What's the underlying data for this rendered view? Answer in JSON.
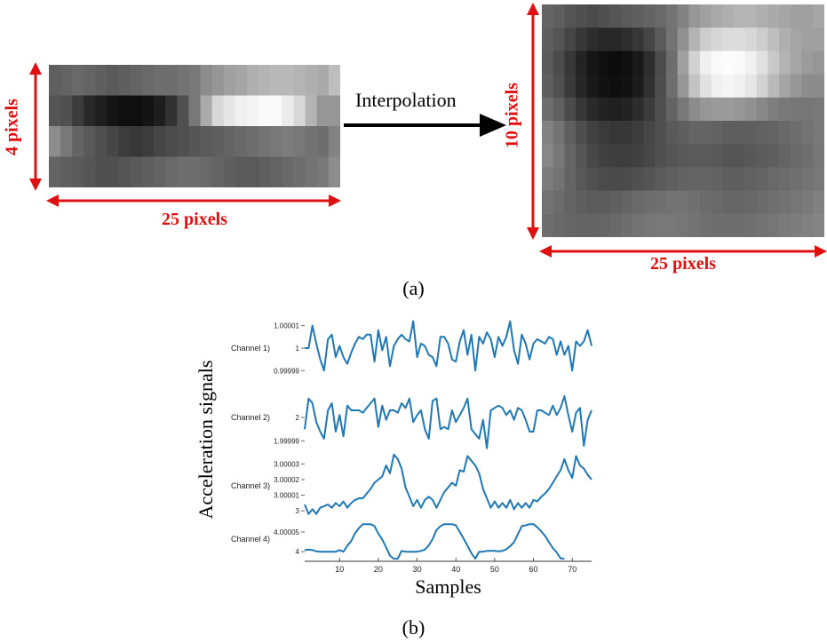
{
  "figure_a": {
    "left_height_label": "4 pixels",
    "left_width_label": "25 pixels",
    "arrow_label": "Interpolation",
    "right_height_label": "10 pixels",
    "right_width_label": "25 pixels",
    "caption": "(a)",
    "label_color": "#e01010",
    "arrow_color": "#000000",
    "left_image": [
      [
        95,
        100,
        105,
        100,
        95,
        90,
        95,
        100,
        105,
        110,
        110,
        115,
        120,
        140,
        150,
        160,
        165,
        175,
        180,
        185,
        185,
        180,
        175,
        170,
        190
      ],
      [
        85,
        80,
        60,
        40,
        30,
        20,
        15,
        15,
        20,
        30,
        50,
        80,
        120,
        170,
        215,
        230,
        240,
        245,
        250,
        250,
        235,
        215,
        180,
        150,
        150
      ],
      [
        140,
        120,
        100,
        90,
        80,
        70,
        60,
        55,
        60,
        70,
        75,
        80,
        85,
        90,
        95,
        100,
        105,
        110,
        115,
        120,
        125,
        120,
        115,
        110,
        130
      ],
      [
        100,
        95,
        90,
        85,
        80,
        80,
        85,
        90,
        95,
        100,
        105,
        110,
        110,
        105,
        100,
        95,
        90,
        90,
        95,
        100,
        105,
        110,
        115,
        120,
        140
      ]
    ],
    "right_image": [
      [
        100,
        95,
        85,
        80,
        75,
        80,
        85,
        90,
        95,
        100,
        105,
        115,
        130,
        150,
        160,
        170,
        175,
        180,
        180,
        175,
        170,
        165,
        160,
        160,
        165
      ],
      [
        95,
        85,
        70,
        55,
        45,
        40,
        40,
        45,
        55,
        70,
        90,
        115,
        145,
        180,
        205,
        215,
        220,
        220,
        215,
        205,
        190,
        175,
        165,
        160,
        160
      ],
      [
        90,
        75,
        55,
        35,
        22,
        15,
        12,
        15,
        25,
        45,
        75,
        110,
        160,
        210,
        240,
        250,
        252,
        250,
        240,
        225,
        200,
        180,
        165,
        155,
        150
      ],
      [
        95,
        80,
        58,
        38,
        25,
        18,
        15,
        18,
        28,
        48,
        78,
        110,
        150,
        195,
        225,
        240,
        245,
        240,
        230,
        210,
        185,
        165,
        150,
        140,
        140
      ],
      [
        110,
        95,
        75,
        55,
        42,
        35,
        32,
        35,
        45,
        60,
        80,
        100,
        120,
        140,
        150,
        155,
        155,
        150,
        145,
        135,
        125,
        120,
        118,
        118,
        120
      ],
      [
        130,
        115,
        95,
        78,
        65,
        58,
        55,
        55,
        60,
        70,
        80,
        90,
        95,
        100,
        100,
        98,
        95,
        95,
        95,
        98,
        100,
        105,
        110,
        115,
        120
      ],
      [
        135,
        120,
        100,
        85,
        72,
        65,
        62,
        62,
        65,
        72,
        80,
        85,
        88,
        90,
        90,
        88,
        85,
        85,
        88,
        92,
        95,
        100,
        105,
        110,
        118
      ],
      [
        125,
        115,
        100,
        88,
        80,
        75,
        74,
        75,
        80,
        85,
        90,
        95,
        98,
        100,
        100,
        98,
        95,
        95,
        98,
        100,
        105,
        108,
        112,
        115,
        120
      ],
      [
        115,
        108,
        100,
        95,
        92,
        92,
        95,
        100,
        105,
        110,
        112,
        115,
        115,
        112,
        108,
        105,
        102,
        102,
        104,
        108,
        112,
        115,
        118,
        122,
        128
      ],
      [
        110,
        105,
        102,
        100,
        100,
        102,
        105,
        110,
        115,
        118,
        120,
        120,
        118,
        115,
        112,
        110,
        110,
        110,
        112,
        115,
        118,
        122,
        125,
        128,
        132
      ]
    ]
  },
  "figure_b": {
    "caption": "(b)",
    "ylabel": "Acceleration signals",
    "xlabel": "Samples",
    "line_color": "#1f77b4"
  },
  "chart_data": {
    "type": "line",
    "xlabel": "Samples",
    "ylabel": "Acceleration signals",
    "xlim": [
      1,
      75
    ],
    "x_ticks": [
      10,
      20,
      30,
      40,
      50,
      60,
      70
    ],
    "x_tick_labels": [
      "10",
      "20",
      "30",
      "40",
      "50",
      "60",
      "70"
    ],
    "series": [
      {
        "name": "Channel 1)",
        "ylim": [
          0.999985,
          1.000015
        ],
        "y_ticks": [
          1.00001,
          1,
          0.99999
        ],
        "y_tick_labels": [
          "1.00001",
          "1",
          "0.99999"
        ],
        "values": [
          1,
          1,
          1.00001,
          1.000002,
          0.999995,
          0.99999,
          1.000004,
          1.000006,
          0.999996,
          1.000001,
          0.999996,
          0.999993,
          0.999998,
          1.000002,
          1.000005,
          1.000004,
          1.000006,
          1.000006,
          0.999994,
          1.000008,
          0.999999,
          1.000005,
          0.999992,
          1.000001,
          1.000004,
          1.000006,
          1.000004,
          1.000003,
          1.000012,
          0.999996,
          1.000002,
          1.000001,
          0.999997,
          0.999996,
          0.999992,
          1.000005,
          1.000005,
          1.000002,
          0.999995,
          0.999994,
          1.000003,
          1.000008,
          0.999997,
          1.000006,
          0.99999,
          1.000005,
          1.000002,
          1.000007,
          1.000004,
          0.999996,
          1.000005,
          1.000001,
          1.000005,
          1.000012,
          0.999999,
          0.999993,
          1.000006,
          1.000002,
          0.999995,
          1.000002,
          1.000004,
          1.000003,
          1.000002,
          1.000005,
          1.000004,
          0.999997,
          1.000003,
          0.999997,
          1.000001,
          0.99999,
          1.000003,
          1.000001,
          1.000003,
          1.000008,
          1.000001
        ]
      },
      {
        "name": "Channel 2)",
        "ylim": [
          1.999985,
          2.000015
        ],
        "y_ticks": [
          2,
          1.99999
        ],
        "y_tick_labels": [
          "2",
          "1.99999"
        ],
        "values": [
          1.999995,
          2.000008,
          2.000006,
          1.999998,
          1.999994,
          1.999991,
          2.000003,
          2.000006,
          1.999994,
          2.000001,
          1.999992,
          2.000005,
          2.000003,
          2.000003,
          2.000003,
          2.000002,
          2.000004,
          2.000006,
          2.000008,
          1.999996,
          2.000005,
          1.999999,
          2.000003,
          2.000003,
          2.000002,
          2.000006,
          2.000004,
          2.000008,
          1.999998,
          2.000001,
          2.000003,
          1.999995,
          1.999991,
          2.000007,
          2.000008,
          1.999995,
          1.999996,
          1.999995,
          2.000003,
          1.999998,
          2.000001,
          2.000004,
          2.000008,
          1.999995,
          1.999993,
          1.999991,
          1.999999,
          1.999987,
          2.000003,
          2.000004,
          2.000005,
          2.000004,
          2.000001,
          2.000003,
          1.999999,
          2.000004,
          2.000003,
          1.999999,
          1.999994,
          1.999994,
          2.000003,
          2.000003,
          2.000002,
          2.000001,
          2.000005,
          2.000001,
          2.000004,
          2.000009,
          2.000001,
          1.999994,
          2.000002,
          2.000004,
          1.999988,
          1.999999,
          2.000003
        ]
      },
      {
        "name": "Channel 3)",
        "ylim": [
          2.999995,
          3.000037
        ],
        "y_ticks": [
          3.00003,
          3.00002,
          3.00001,
          3
        ],
        "y_tick_labels": [
          "3.00003",
          "3.00002",
          "3.00001",
          "3"
        ],
        "values": [
          3.000004,
          2.999998,
          3.000001,
          2.999998,
          3.000002,
          3.000003,
          3.000004,
          3.000002,
          3.000005,
          3.000003,
          3.000006,
          3.000002,
          3.000005,
          3.000007,
          3.000008,
          3.000008,
          3.000011,
          3.000014,
          3.000018,
          3.00002,
          3.000022,
          3.000029,
          3.000024,
          3.000036,
          3.000033,
          3.000027,
          3.000015,
          3.000009,
          3.000003,
          3.000007,
          3.000002,
          3.000007,
          3.000009,
          3.000007,
          3.000002,
          3.000007,
          3.000012,
          3.000015,
          3.000018,
          3.000016,
          3.000026,
          3.000025,
          3.000035,
          3.000032,
          3.000029,
          3.000024,
          3.000014,
          3.000008,
          3.000002,
          3.000006,
          3.000002,
          3.000005,
          3.000002,
          3.000007,
          3.000001,
          3.000005,
          3.000002,
          3.000005,
          3.000002,
          3.000007,
          3.000006,
          3.000009,
          3.000011,
          3.000014,
          3.000018,
          3.000022,
          3.000026,
          3.000033,
          3.000026,
          3.000021,
          3.000035,
          3.000029,
          3.000027,
          3.000023,
          3.00002
        ]
      },
      {
        "name": "Channel 4)",
        "ylim": [
          3.99998,
          4.000084
        ],
        "y_ticks": [
          4.00005,
          4
        ],
        "y_tick_labels": [
          "4.00005",
          "4"
        ],
        "values": [
          4.000004,
          4.000005,
          4.000004,
          4.000001,
          4,
          4,
          4,
          4,
          4,
          4.000004,
          4,
          4.000015,
          4.000027,
          4.000047,
          4.00006,
          4.00007,
          4.00007,
          4.00007,
          4.000065,
          4.000046,
          4.000031,
          4.000011,
          3.99999,
          3.999982,
          3.999982,
          4.000002,
          4,
          4,
          4,
          4,
          4.000002,
          4.000005,
          4.000016,
          4.000032,
          4.000055,
          4.000065,
          4.00007,
          4.00007,
          4.00007,
          4.000067,
          4.00005,
          4.000033,
          4.000015,
          3.999996,
          3.999982,
          4,
          4,
          4.000002,
          4.000002,
          4.000002,
          4.000001,
          4.000002,
          4.000006,
          4.000014,
          4.000024,
          4.000045,
          4.000065,
          4.000067,
          4.00007,
          4.00007,
          4.000062,
          4.000052,
          4.00004,
          4.000024,
          4.000009,
          3.999998,
          3.999983,
          3.999982
        ]
      }
    ]
  }
}
